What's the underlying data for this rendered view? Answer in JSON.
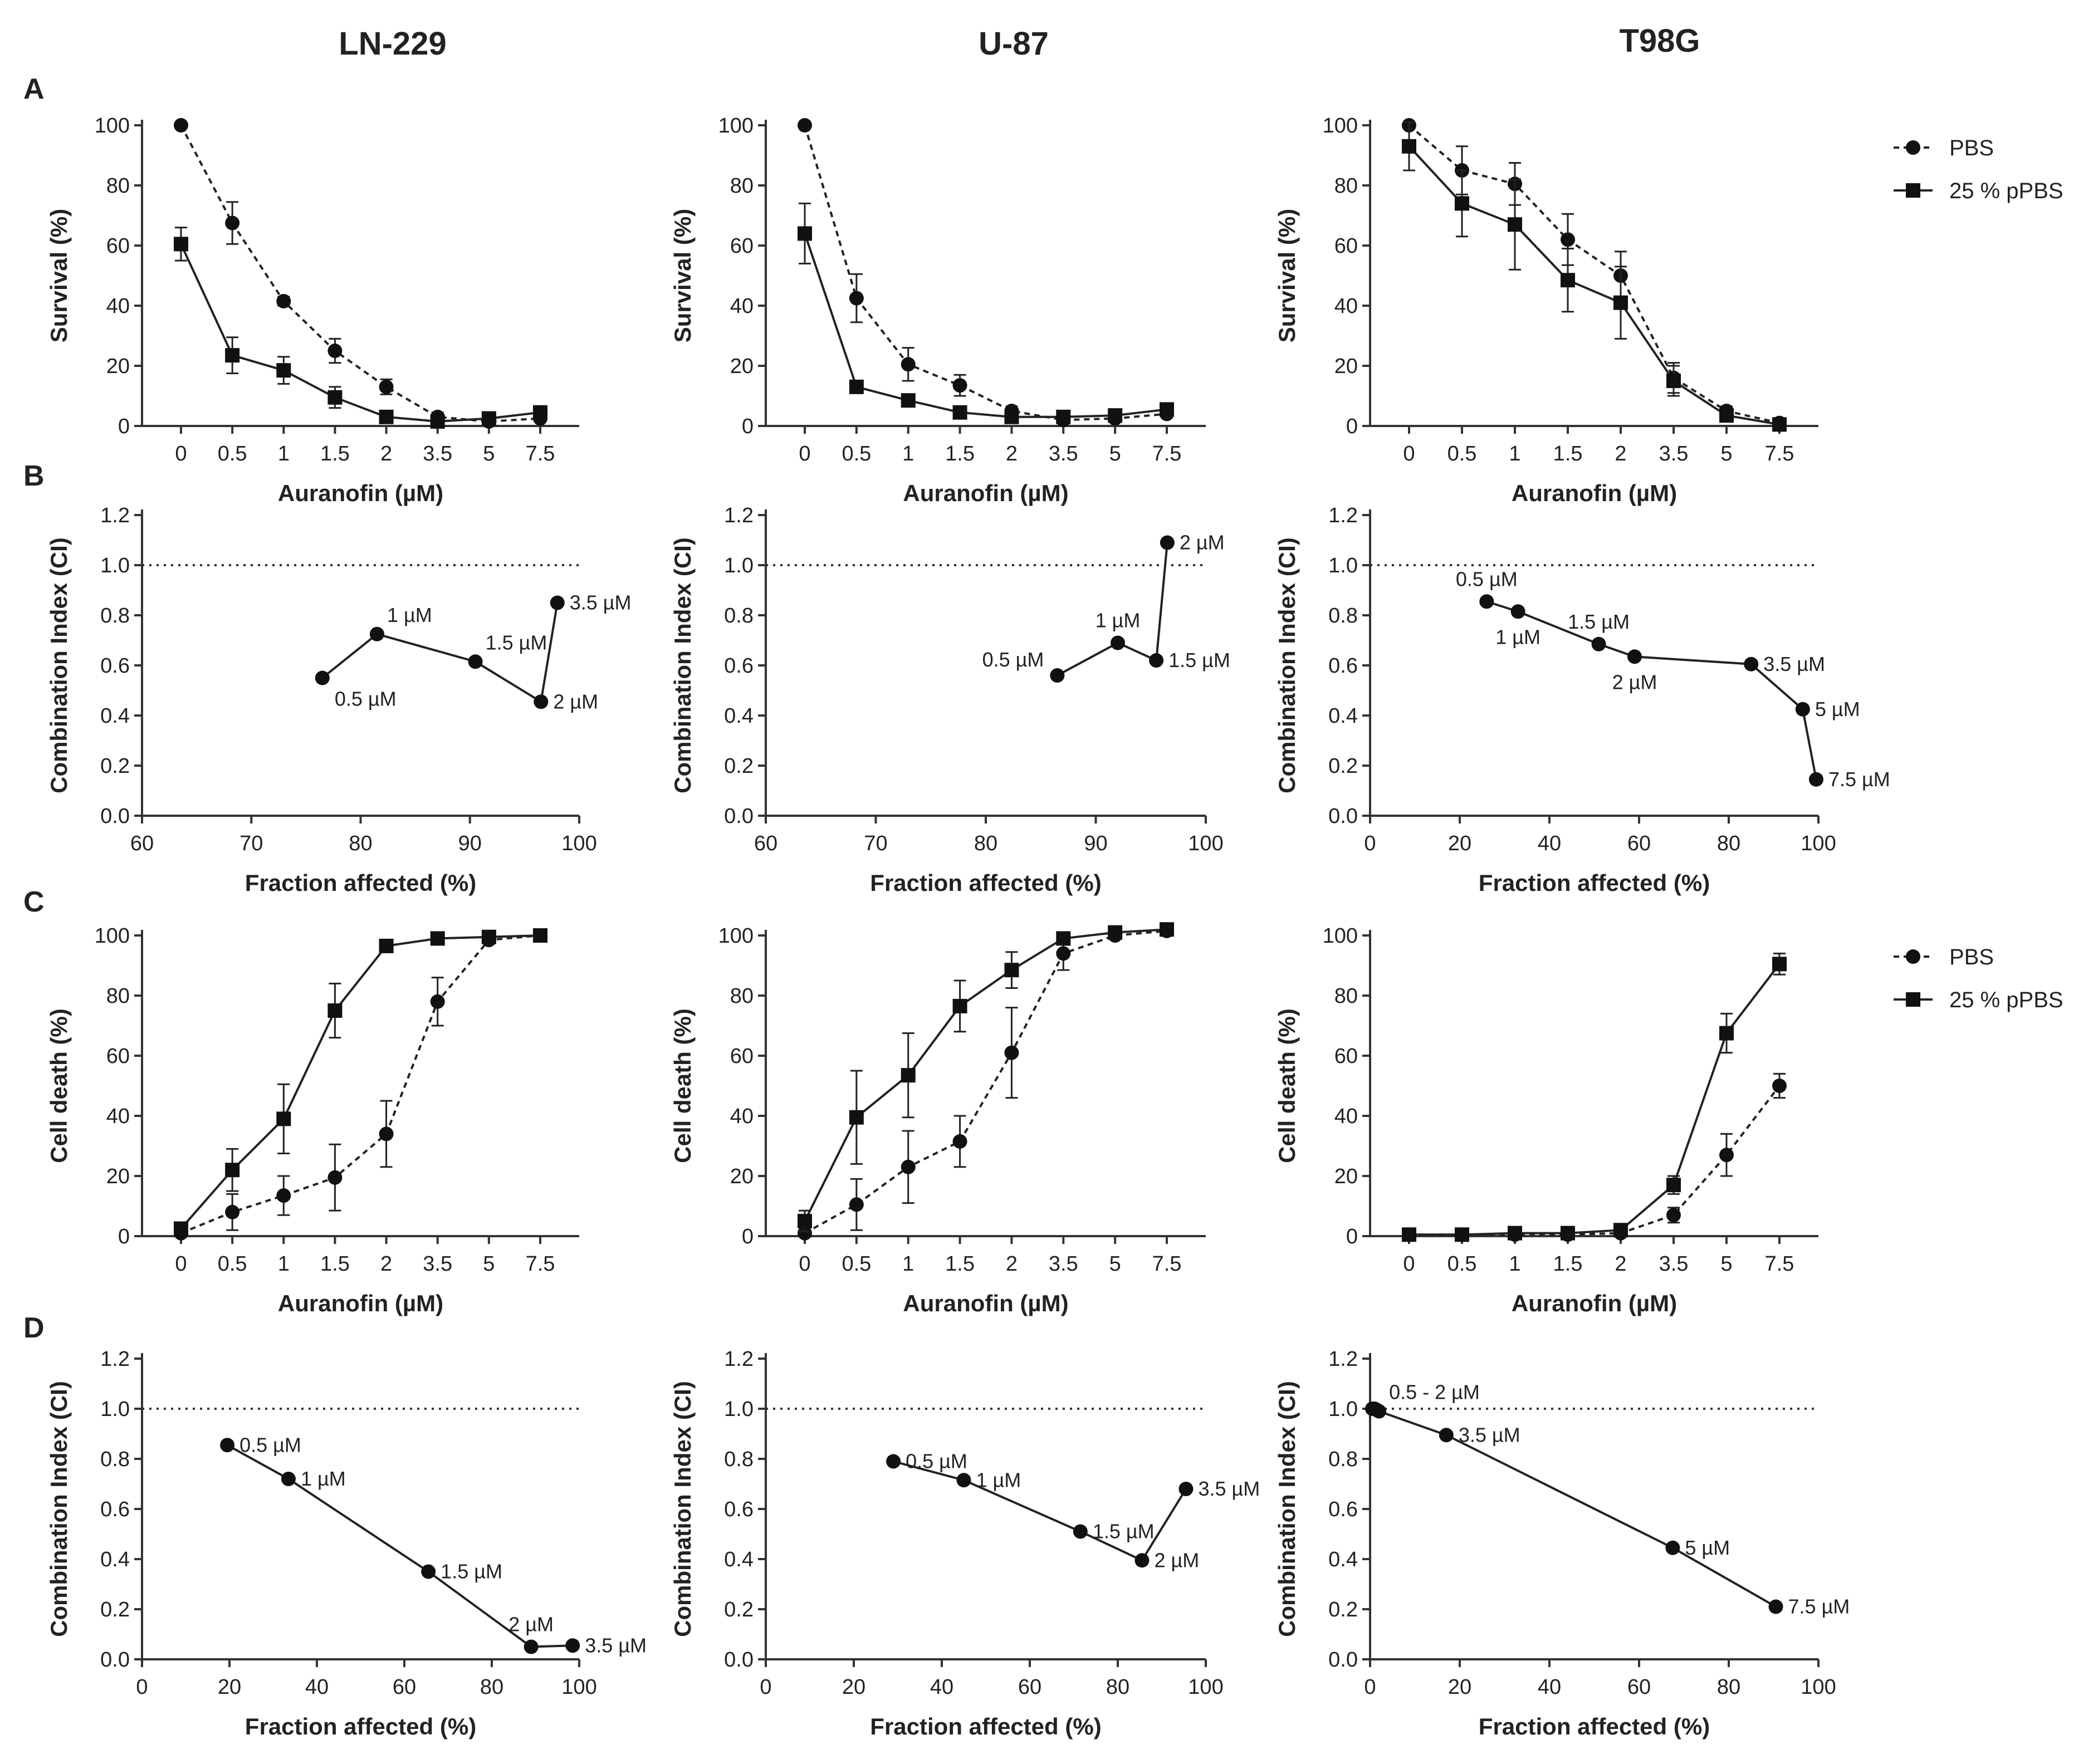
{
  "column_titles": [
    "LN-229",
    "U-87",
    "T98G"
  ],
  "row_labels": [
    "A",
    "B",
    "C",
    "D"
  ],
  "legend_top": {
    "items": [
      {
        "name": "PBS",
        "marker": "circle",
        "dash": true
      },
      {
        "name": "25 % pPBS",
        "marker": "square",
        "dash": false
      }
    ]
  },
  "legend_bottom": {
    "items": [
      {
        "name": "PBS",
        "marker": "circle",
        "dash": true
      },
      {
        "name": "25 % pPBS",
        "marker": "square",
        "dash": false
      }
    ]
  },
  "chart_data": [
    {
      "type": "line",
      "row": "A",
      "col": 0,
      "title": "LN-229",
      "xlabel": "Auranofin (µM)",
      "ylabel": "Survival (%)",
      "categories": [
        "0",
        "0.5",
        "1",
        "1.5",
        "2",
        "3.5",
        "5",
        "7.5"
      ],
      "ylim": [
        0,
        100
      ],
      "yticks": [
        0,
        20,
        40,
        60,
        80,
        100
      ],
      "series": [
        {
          "name": "PBS",
          "marker": "circle",
          "dash": true,
          "values": [
            100,
            67.5,
            41.5,
            25,
            13,
            3,
            1.5,
            2.5
          ],
          "errors": [
            0,
            7,
            1.5,
            4,
            2.5,
            1.5,
            1,
            1
          ]
        },
        {
          "name": "25 % pPBS",
          "marker": "square",
          "dash": false,
          "values": [
            60.5,
            23.5,
            18.5,
            9.5,
            3,
            1.5,
            2.5,
            4.5
          ],
          "errors": [
            5.5,
            6,
            4.5,
            3.5,
            1,
            0.5,
            0.5,
            1.5
          ]
        }
      ]
    },
    {
      "type": "line",
      "row": "A",
      "col": 1,
      "title": "U-87",
      "xlabel": "Auranofin (µM)",
      "ylabel": "Survival (%)",
      "categories": [
        "0",
        "0.5",
        "1",
        "1.5",
        "2",
        "3.5",
        "5",
        "7.5"
      ],
      "ylim": [
        0,
        100
      ],
      "yticks": [
        0,
        20,
        40,
        60,
        80,
        100
      ],
      "series": [
        {
          "name": "PBS",
          "marker": "circle",
          "dash": true,
          "values": [
            100,
            42.5,
            20.5,
            13.5,
            5,
            2,
            2.5,
            4
          ],
          "errors": [
            0,
            8,
            5.5,
            3.5,
            1.5,
            0.5,
            0.5,
            1
          ]
        },
        {
          "name": "25 % pPBS",
          "marker": "square",
          "dash": false,
          "values": [
            64,
            13,
            8.5,
            4.5,
            3,
            3,
            3.5,
            5.5
          ],
          "errors": [
            10,
            2,
            1.5,
            1,
            0.5,
            0.5,
            0.5,
            1
          ]
        }
      ]
    },
    {
      "type": "line",
      "row": "A",
      "col": 2,
      "title": "T98G",
      "xlabel": "Auranofin (µM)",
      "ylabel": "Survival (%)",
      "categories": [
        "0",
        "0.5",
        "1",
        "1.5",
        "2",
        "3.5",
        "5",
        "7.5"
      ],
      "ylim": [
        0,
        100
      ],
      "yticks": [
        0,
        20,
        40,
        60,
        80,
        100
      ],
      "series": [
        {
          "name": "PBS",
          "marker": "circle",
          "dash": true,
          "values": [
            100,
            85,
            80.5,
            62,
            50,
            16,
            5,
            1
          ],
          "errors": [
            0,
            8,
            7,
            8.5,
            8,
            5,
            1.5,
            0.5
          ]
        },
        {
          "name": "25 % pPBS",
          "marker": "square",
          "dash": false,
          "values": [
            93,
            74,
            67,
            48.5,
            41,
            15,
            3.5,
            0.5
          ],
          "errors": [
            8,
            11,
            15,
            10.5,
            12,
            5,
            1,
            0.5
          ]
        }
      ]
    },
    {
      "type": "scatter",
      "row": "B",
      "col": 0,
      "xlabel": "Fraction affected (%)",
      "ylabel": "Combination Index (CI)",
      "xlim": [
        60,
        100
      ],
      "xticks": [
        60,
        70,
        80,
        90,
        100
      ],
      "ylim": [
        0,
        1.2
      ],
      "yticks": [
        "0.0",
        "0.2",
        "0.4",
        "0.6",
        "0.8",
        "1.0",
        "1.2"
      ],
      "reference_line": 1.0,
      "points": [
        {
          "x": 76.5,
          "y": 0.55,
          "label": "0.5 µM",
          "pos": "below-right"
        },
        {
          "x": 81.5,
          "y": 0.725,
          "label": "1 µM",
          "pos": "above-right"
        },
        {
          "x": 90.5,
          "y": 0.615,
          "label": "1.5 µM",
          "pos": "above-right"
        },
        {
          "x": 96.5,
          "y": 0.455,
          "label": "2 µM",
          "pos": "right"
        },
        {
          "x": 98,
          "y": 0.85,
          "label": "3.5 µM",
          "pos": "right"
        }
      ]
    },
    {
      "type": "scatter",
      "row": "B",
      "col": 1,
      "xlabel": "Fraction affected (%)",
      "ylabel": "Combination Index (CI)",
      "xlim": [
        60,
        100
      ],
      "xticks": [
        60,
        70,
        80,
        90,
        100
      ],
      "ylim": [
        0,
        1.2
      ],
      "yticks": [
        "0.0",
        "0.2",
        "0.4",
        "0.6",
        "0.8",
        "1.0",
        "1.2"
      ],
      "reference_line": 1.0,
      "points": [
        {
          "x": 86.5,
          "y": 0.56,
          "label": "0.5 µM",
          "pos": "above-left"
        },
        {
          "x": 92,
          "y": 0.69,
          "label": "1 µM",
          "pos": "above"
        },
        {
          "x": 95.5,
          "y": 0.62,
          "label": "1.5 µM",
          "pos": "right"
        },
        {
          "x": 96.5,
          "y": 1.09,
          "label": "2 µM",
          "pos": "right"
        }
      ]
    },
    {
      "type": "scatter",
      "row": "B",
      "col": 2,
      "xlabel": "Fraction affected (%)",
      "ylabel": "Combination Index (CI)",
      "xlim": [
        0,
        100
      ],
      "xticks": [
        0,
        20,
        40,
        60,
        80,
        100
      ],
      "ylim": [
        0,
        1.2
      ],
      "yticks": [
        "0.0",
        "0.2",
        "0.4",
        "0.6",
        "0.8",
        "1.0",
        "1.2"
      ],
      "reference_line": 1.0,
      "points": [
        {
          "x": 26,
          "y": 0.855,
          "label": "0.5 µM",
          "pos": "above"
        },
        {
          "x": 33,
          "y": 0.815,
          "label": "1 µM",
          "pos": "below"
        },
        {
          "x": 51,
          "y": 0.685,
          "label": "1.5 µM",
          "pos": "above"
        },
        {
          "x": 59,
          "y": 0.635,
          "label": "2 µM",
          "pos": "below"
        },
        {
          "x": 85,
          "y": 0.605,
          "label": "3.5 µM",
          "pos": "right"
        },
        {
          "x": 96.5,
          "y": 0.425,
          "label": "5 µM",
          "pos": "right"
        },
        {
          "x": 99.5,
          "y": 0.145,
          "label": "7.5 µM",
          "pos": "right"
        }
      ]
    },
    {
      "type": "line",
      "row": "C",
      "col": 0,
      "xlabel": "Auranofin (µM)",
      "ylabel": "Cell death (%)",
      "categories": [
        "0",
        "0.5",
        "1",
        "1.5",
        "2",
        "3.5",
        "5",
        "7.5"
      ],
      "ylim": [
        0,
        100
      ],
      "yticks": [
        0,
        20,
        40,
        60,
        80,
        100
      ],
      "series": [
        {
          "name": "PBS",
          "marker": "circle",
          "dash": true,
          "values": [
            1,
            8,
            13.5,
            19.5,
            34,
            78,
            98.5,
            100
          ],
          "errors": [
            0.5,
            6,
            6.5,
            11,
            11,
            8,
            1,
            0.5
          ]
        },
        {
          "name": "25 % pPBS",
          "marker": "square",
          "dash": false,
          "values": [
            2.5,
            22,
            39,
            75,
            96.5,
            99,
            99.5,
            100
          ],
          "errors": [
            1,
            7,
            11.5,
            9,
            1,
            1,
            0.5,
            0.5
          ]
        }
      ]
    },
    {
      "type": "line",
      "row": "C",
      "col": 1,
      "xlabel": "Auranofin (µM)",
      "ylabel": "Cell death (%)",
      "categories": [
        "0",
        "0.5",
        "1",
        "1.5",
        "2",
        "3.5",
        "5",
        "7.5"
      ],
      "ylim": [
        0,
        100
      ],
      "yticks": [
        0,
        20,
        40,
        60,
        80,
        100
      ],
      "series": [
        {
          "name": "PBS",
          "marker": "circle",
          "dash": true,
          "values": [
            1,
            10.5,
            23,
            31.5,
            61,
            94,
            100,
            101.5
          ],
          "errors": [
            0.5,
            8.5,
            12,
            8.5,
            15,
            5.5,
            1,
            1
          ]
        },
        {
          "name": "25 % pPBS",
          "marker": "square",
          "dash": false,
          "values": [
            5,
            39.5,
            53.5,
            76.5,
            88.5,
            99,
            101,
            102
          ],
          "errors": [
            3.5,
            15.5,
            14,
            8.5,
            6,
            1,
            0.5,
            0.5
          ]
        }
      ]
    },
    {
      "type": "line",
      "row": "C",
      "col": 2,
      "xlabel": "Auranofin (µM)",
      "ylabel": "Cell death (%)",
      "categories": [
        "0",
        "0.5",
        "1",
        "1.5",
        "2",
        "3.5",
        "5",
        "7.5"
      ],
      "ylim": [
        0,
        100
      ],
      "yticks": [
        0,
        20,
        40,
        60,
        80,
        100
      ],
      "series": [
        {
          "name": "PBS",
          "marker": "circle",
          "dash": true,
          "values": [
            0.5,
            0.5,
            0.5,
            0.5,
            1,
            7,
            27,
            50
          ],
          "errors": [
            0.3,
            0.3,
            0.3,
            0.3,
            0.5,
            2.5,
            7,
            4
          ]
        },
        {
          "name": "25 % pPBS",
          "marker": "square",
          "dash": false,
          "values": [
            0.5,
            0.5,
            1,
            1,
            2,
            17,
            67.5,
            90.5
          ],
          "errors": [
            0.3,
            0.3,
            0.5,
            0.5,
            1,
            3,
            6.5,
            3.5
          ]
        }
      ]
    },
    {
      "type": "scatter",
      "row": "D",
      "col": 0,
      "xlabel": "Fraction affected (%)",
      "ylabel": "Combination Index (CI)",
      "xlim": [
        0,
        100
      ],
      "xticks": [
        0,
        20,
        40,
        60,
        80,
        100
      ],
      "ylim": [
        0,
        1.2
      ],
      "yticks": [
        "0.0",
        "0.2",
        "0.4",
        "0.6",
        "0.8",
        "1.0",
        "1.2"
      ],
      "reference_line": 1.0,
      "points": [
        {
          "x": 19.5,
          "y": 0.855,
          "label": "0.5 µM",
          "pos": "right"
        },
        {
          "x": 33.5,
          "y": 0.72,
          "label": "1 µM",
          "pos": "right"
        },
        {
          "x": 65.5,
          "y": 0.35,
          "label": "1.5 µM",
          "pos": "right"
        },
        {
          "x": 89,
          "y": 0.05,
          "label": "2 µM",
          "pos": "above"
        },
        {
          "x": 98.5,
          "y": 0.055,
          "label": "3.5 µM",
          "pos": "right"
        }
      ]
    },
    {
      "type": "scatter",
      "row": "D",
      "col": 1,
      "xlabel": "Fraction affected (%)",
      "ylabel": "Combination Index (CI)",
      "xlim": [
        0,
        100
      ],
      "xticks": [
        0,
        20,
        40,
        60,
        80,
        100
      ],
      "ylim": [
        0,
        1.2
      ],
      "yticks": [
        "0.0",
        "0.2",
        "0.4",
        "0.6",
        "0.8",
        "1.0",
        "1.2"
      ],
      "reference_line": 1.0,
      "points": [
        {
          "x": 29,
          "y": 0.79,
          "label": "0.5 µM",
          "pos": "right"
        },
        {
          "x": 45,
          "y": 0.715,
          "label": "1 µM",
          "pos": "right"
        },
        {
          "x": 71.5,
          "y": 0.51,
          "label": "1.5 µM",
          "pos": "right"
        },
        {
          "x": 85.5,
          "y": 0.395,
          "label": "2 µM",
          "pos": "right"
        },
        {
          "x": 95.5,
          "y": 0.68,
          "label": "3.5 µM",
          "pos": "right"
        }
      ]
    },
    {
      "type": "scatter",
      "row": "D",
      "col": 2,
      "xlabel": "Fraction affected (%)",
      "ylabel": "Combination Index (CI)",
      "xlim": [
        0,
        100
      ],
      "xticks": [
        0,
        20,
        40,
        60,
        80,
        100
      ],
      "ylim": [
        0,
        1.2
      ],
      "yticks": [
        "0.0",
        "0.2",
        "0.4",
        "0.6",
        "0.8",
        "1.0",
        "1.2"
      ],
      "reference_line": 1.0,
      "points": [
        {
          "x": 0.5,
          "y": 1.0,
          "label": "",
          "pos": "none"
        },
        {
          "x": 1,
          "y": 1.0,
          "label": "",
          "pos": "none"
        },
        {
          "x": 1.5,
          "y": 0.995,
          "label": "",
          "pos": "none"
        },
        {
          "x": 2,
          "y": 0.99,
          "label": "0.5 - 2 µM",
          "pos": "above-right"
        },
        {
          "x": 17,
          "y": 0.895,
          "label": "3.5 µM",
          "pos": "right"
        },
        {
          "x": 67.5,
          "y": 0.445,
          "label": "5 µM",
          "pos": "right"
        },
        {
          "x": 90.5,
          "y": 0.21,
          "label": "7.5 µM",
          "pos": "right"
        }
      ]
    }
  ]
}
